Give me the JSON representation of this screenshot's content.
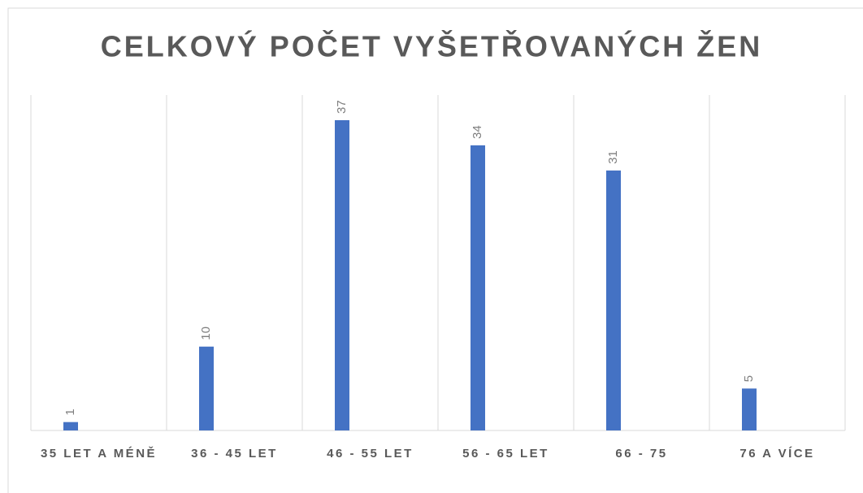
{
  "chart_data": {
    "type": "bar",
    "title": "CELKOVÝ POČET VYŠETŘOVANÝCH ŽEN",
    "categories": [
      "35 LET A MÉNĚ",
      "36 - 45 LET",
      "46 - 55 LET",
      "56 - 65 LET",
      "66 - 75",
      "76 A VÍCE"
    ],
    "values": [
      1,
      10,
      37,
      34,
      31,
      5
    ],
    "color": "#4472c4",
    "ylim": [
      0,
      40
    ],
    "grid": true
  }
}
